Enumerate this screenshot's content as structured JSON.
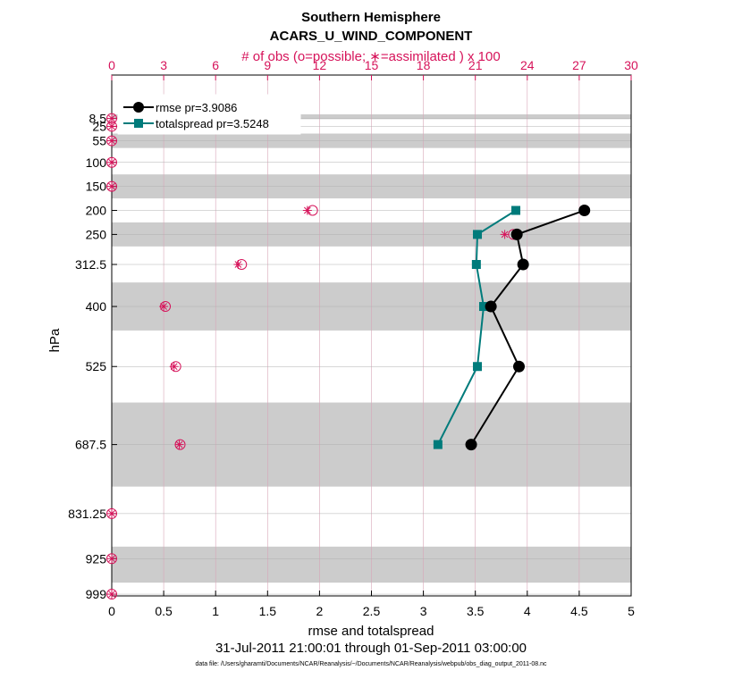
{
  "chart_data": {
    "type": "line",
    "title": "Southern Hemisphere",
    "subtitle": "ACARS_U_WIND_COMPONENT",
    "top_axis_label": "# of obs (o=possible; ∗=assimilated ) x 100",
    "xlabel": "rmse and totalspread",
    "ylabel": "hPa",
    "date_range": "31-Jul-2011 21:00:01 through 01-Sep-2011 03:00:00",
    "footnote": "data file: /Users/gharamti/Documents/NCAR/Reanalysis/~/Documents/NCAR/Reanalysis/webpub/obs_diag_output_2011-08.nc",
    "xlim": [
      0,
      5
    ],
    "x_ticks": [
      "0",
      "0.5",
      "1",
      "1.5",
      "2",
      "2.5",
      "3",
      "3.5",
      "4",
      "4.5",
      "5"
    ],
    "top_xlim": [
      0,
      30
    ],
    "top_ticks": [
      "0",
      "3",
      "6",
      "9",
      "12",
      "15",
      "18",
      "21",
      "24",
      "27",
      "30"
    ],
    "levels": [
      8.5,
      25,
      55,
      100,
      150,
      200,
      250,
      312.5,
      400,
      525,
      687.5,
      831.25,
      925,
      999
    ],
    "level_labels": [
      "8.5",
      "25",
      "55",
      "100",
      "150",
      "200",
      "250",
      "312.5",
      "400",
      "525",
      "687.5",
      "831.25",
      "925",
      "999"
    ],
    "shaded_bands": [
      [
        0,
        10
      ],
      [
        40,
        70
      ],
      [
        125,
        175
      ],
      [
        225,
        275
      ],
      [
        350,
        450
      ],
      [
        600,
        775
      ],
      [
        900,
        975
      ]
    ],
    "series": [
      {
        "name": "rmse",
        "legend": "rmse pr=3.9086",
        "color": "#000000",
        "marker": "circle",
        "levels": [
          200,
          250,
          312.5,
          400,
          525,
          687.5
        ],
        "values": [
          4.55,
          3.9,
          3.96,
          3.65,
          3.92,
          3.46
        ]
      },
      {
        "name": "totalspread",
        "legend": "totalspread pr=3.5248",
        "color": "#007b7b",
        "marker": "square",
        "levels": [
          200,
          250,
          312.5,
          400,
          525,
          687.5
        ],
        "values": [
          3.89,
          3.52,
          3.51,
          3.58,
          3.52,
          3.14
        ]
      }
    ],
    "obs_possible": {
      "levels": [
        8.5,
        25,
        55,
        100,
        150,
        200,
        250,
        312.5,
        400,
        525,
        687.5,
        831.25,
        925,
        999
      ],
      "values": [
        0,
        0,
        0,
        0,
        0,
        11.6,
        23.2,
        7.5,
        3.1,
        3.7,
        3.95,
        0,
        0,
        0
      ]
    },
    "obs_assimilated": {
      "levels": [
        8.5,
        25,
        55,
        100,
        150,
        200,
        250,
        312.5,
        400,
        525,
        687.5,
        831.25,
        925,
        999
      ],
      "values": [
        0,
        0,
        0,
        0,
        0,
        11.3,
        22.7,
        7.3,
        3.0,
        3.6,
        3.9,
        0,
        0,
        0
      ]
    }
  }
}
